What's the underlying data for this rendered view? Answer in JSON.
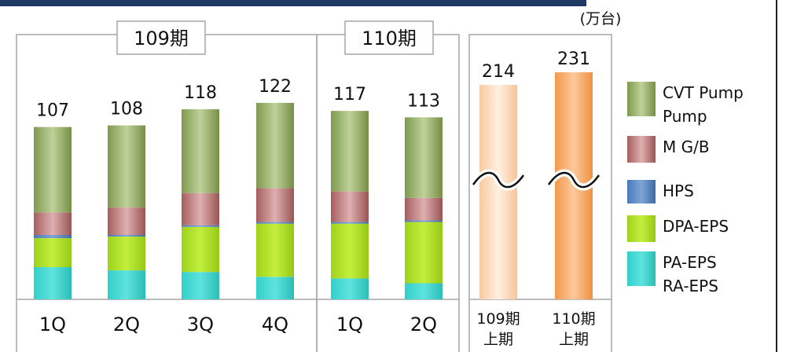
{
  "chart_data": {
    "type": "bar",
    "stacked": true,
    "unit_label": "(万台)",
    "groups": [
      {
        "label": "109期",
        "categories": [
          "1Q",
          "2Q",
          "3Q",
          "4Q"
        ]
      },
      {
        "label": "110期",
        "categories": [
          "1Q",
          "2Q"
        ]
      }
    ],
    "categories": [
      "1Q",
      "2Q",
      "3Q",
      "4Q",
      "1Q",
      "2Q"
    ],
    "totals": [
      107,
      108,
      118,
      122,
      117,
      113
    ],
    "series": [
      {
        "name": "PA-EPS RA-EPS",
        "legend_lines": [
          "PA-EPS",
          "RA-EPS"
        ],
        "color": "#40d0cc",
        "values": [
          20,
          18,
          17,
          14,
          13,
          10
        ]
      },
      {
        "name": "DPA-EPS",
        "legend_lines": [
          "DPA-EPS"
        ],
        "color": "#a8d82c",
        "values": [
          18,
          21,
          28,
          33,
          34,
          38
        ]
      },
      {
        "name": "HPS",
        "legend_lines": [
          "HPS"
        ],
        "color": "#5b86c0",
        "values": [
          2,
          1,
          1,
          1,
          1,
          1
        ]
      },
      {
        "name": "M G/B",
        "legend_lines": [
          "M G/B"
        ],
        "color": "#b06b6b",
        "values": [
          14,
          17,
          20,
          21,
          19,
          14
        ]
      },
      {
        "name": "CVT Pump Pump",
        "legend_lines": [
          "CVT Pump",
          "Pump"
        ],
        "color": "#8fa860",
        "values": [
          53,
          51,
          52,
          53,
          50,
          50
        ]
      }
    ],
    "half_year": {
      "categories": [
        [
          "109期",
          "上期"
        ],
        [
          "110期",
          "上期"
        ]
      ],
      "values": [
        214,
        231
      ],
      "colors": [
        "#fcd6b0",
        "#f7a35c"
      ],
      "axis_break": true
    }
  }
}
